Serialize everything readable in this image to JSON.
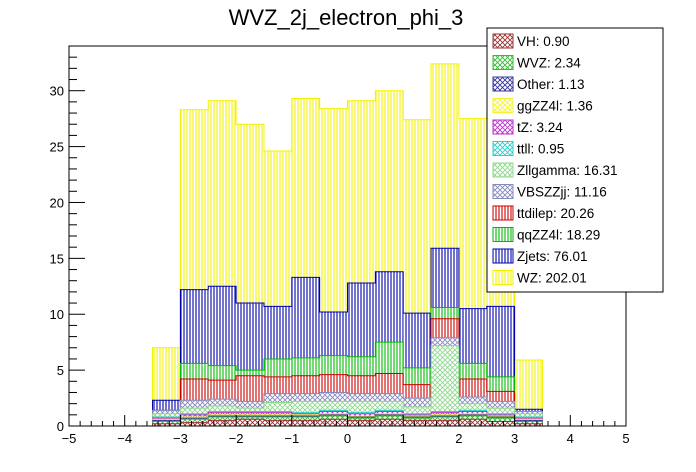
{
  "chart_data": {
    "type": "bar",
    "stacked": true,
    "title": "WVZ_2j_electron_phi_3",
    "xlabel": "",
    "ylabel": "",
    "xlim": [
      -5,
      5
    ],
    "ylim": [
      0,
      34
    ],
    "xticks": [
      -5,
      -4,
      -3,
      -2,
      -1,
      0,
      1,
      2,
      3,
      4,
      5
    ],
    "yticks": [
      0,
      5,
      10,
      15,
      20,
      25,
      30
    ],
    "grid": false,
    "legend_position": "top-right",
    "bin_edges": [
      -3.5,
      -3.0,
      -2.5,
      -2.0,
      -1.5,
      -1.0,
      -0.5,
      0.0,
      0.5,
      1.0,
      1.5,
      2.0,
      2.5,
      3.0,
      3.5
    ],
    "cumulative_totals": [
      {
        "name": "VH",
        "values": [
          0.2,
          0.3,
          0.5,
          0.6,
          0.5,
          0.5,
          0.6,
          0.5,
          0.6,
          0.5,
          0.5,
          0.6,
          0.4,
          0.2
        ]
      },
      {
        "name": "WVZ",
        "values": [
          0.4,
          0.6,
          0.8,
          0.8,
          0.8,
          0.8,
          0.9,
          0.7,
          0.9,
          0.7,
          0.8,
          0.9,
          0.7,
          0.4
        ]
      },
      {
        "name": "Other",
        "values": [
          0.5,
          0.7,
          0.9,
          0.9,
          0.9,
          0.9,
          1.0,
          0.8,
          1.0,
          0.8,
          0.9,
          1.0,
          0.8,
          0.5
        ]
      },
      {
        "name": "ggZZ4l",
        "values": [
          0.6,
          0.8,
          1.0,
          1.0,
          1.0,
          1.0,
          1.1,
          0.9,
          1.1,
          0.9,
          1.0,
          1.1,
          0.9,
          0.6
        ]
      },
      {
        "name": "tZ",
        "values": [
          0.7,
          1.0,
          1.2,
          1.2,
          1.2,
          1.1,
          1.3,
          1.1,
          1.3,
          1.0,
          1.2,
          1.3,
          1.0,
          0.7
        ]
      },
      {
        "name": "ttll",
        "values": [
          0.8,
          1.1,
          1.3,
          1.3,
          1.3,
          1.2,
          1.4,
          1.2,
          1.4,
          1.1,
          1.3,
          1.4,
          1.1,
          0.8
        ]
      },
      {
        "name": "Zllgamma",
        "values": [
          1.1,
          1.6,
          1.8,
          1.6,
          2.1,
          2.2,
          2.2,
          2.2,
          2.2,
          1.7,
          7.2,
          2.0,
          1.6,
          1.1
        ]
      },
      {
        "name": "VBSZZjj",
        "values": [
          1.4,
          2.3,
          2.4,
          2.2,
          2.9,
          2.9,
          3.0,
          2.9,
          2.9,
          2.5,
          7.9,
          2.6,
          2.2,
          1.3
        ]
      },
      {
        "name": "ttdilep",
        "values": [
          1.4,
          4.2,
          4.1,
          4.5,
          4.4,
          4.5,
          4.6,
          4.5,
          4.7,
          3.7,
          9.6,
          4.2,
          3.1,
          1.3
        ]
      },
      {
        "name": "qqZZ4l",
        "values": [
          1.4,
          5.6,
          5.4,
          5.0,
          6.0,
          6.1,
          6.3,
          6.2,
          7.5,
          5.2,
          10.6,
          5.6,
          4.4,
          1.3
        ]
      },
      {
        "name": "Zjets",
        "values": [
          2.3,
          12.2,
          12.5,
          11.0,
          10.7,
          13.3,
          10.2,
          12.8,
          13.8,
          10.1,
          15.9,
          10.5,
          10.7,
          1.5
        ]
      },
      {
        "name": "WZ",
        "values": [
          7.0,
          28.3,
          29.1,
          27.0,
          24.6,
          29.3,
          28.4,
          29.1,
          30.0,
          27.4,
          32.4,
          27.5,
          27.6,
          5.9
        ]
      }
    ],
    "legend": [
      {
        "label": "VH: 0.90",
        "color": "#993333",
        "pattern": "cross"
      },
      {
        "label": "WVZ: 2.34",
        "color": "#33bb33",
        "pattern": "cross"
      },
      {
        "label": "Other: 1.13",
        "color": "#333399",
        "pattern": "cross"
      },
      {
        "label": "ggZZ4l: 1.36",
        "color": "#f4f430",
        "pattern": "cross"
      },
      {
        "label": "tZ: 3.24",
        "color": "#bb33cc",
        "pattern": "cross"
      },
      {
        "label": "ttll: 0.95",
        "color": "#33cccc",
        "pattern": "cross"
      },
      {
        "label": "Zllgamma: 16.31",
        "color": "#8fd88f",
        "pattern": "cross"
      },
      {
        "label": "VBSZZjj: 11.16",
        "color": "#8888bb",
        "pattern": "cross"
      },
      {
        "label": "ttdilep: 20.26",
        "color": "#cc0000",
        "pattern": "vertical"
      },
      {
        "label": "qqZZ4l: 18.29",
        "color": "#00bb00",
        "pattern": "vertical"
      },
      {
        "label": "Zjets: 76.01",
        "color": "#0000aa",
        "pattern": "vertical"
      },
      {
        "label": "WZ: 202.01",
        "color": "#f2f200",
        "pattern": "vertical"
      }
    ]
  }
}
